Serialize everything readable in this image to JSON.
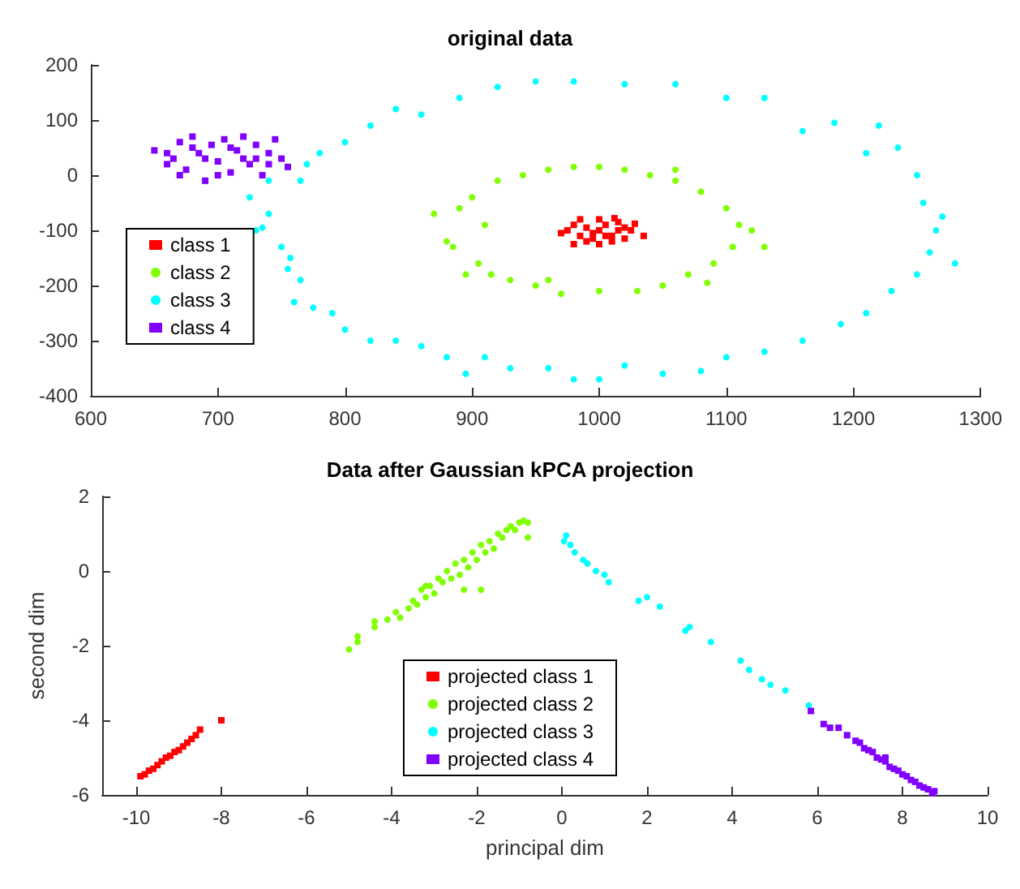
{
  "chart_data": [
    {
      "type": "scatter",
      "title": "original data",
      "xlim": [
        600,
        1300
      ],
      "xticks": [
        600,
        700,
        800,
        900,
        1000,
        1100,
        1200,
        1300
      ],
      "ylim": [
        -400,
        200
      ],
      "yticks": [
        -400,
        -300,
        -200,
        -100,
        0,
        100,
        200
      ],
      "grid": false,
      "legend": "bottom left",
      "series": [
        {
          "name": "class 1",
          "color": "#ff0000",
          "marker": "square",
          "x": [
            975,
            980,
            985,
            990,
            995,
            1000,
            1005,
            1010,
            1015,
            1020,
            990,
            1000,
            1010,
            985,
            1000,
            1015,
            1025,
            1035,
            970,
            995,
            1005,
            1020,
            1028,
            980,
            1012
          ],
          "values": [
            -100,
            -90,
            -110,
            -95,
            -105,
            -100,
            -90,
            -110,
            -100,
            -95,
            -120,
            -125,
            -120,
            -80,
            -80,
            -85,
            -100,
            -110,
            -105,
            -115,
            -110,
            -115,
            -88,
            -125,
            -78
          ]
        },
        {
          "name": "class 2",
          "color": "#80ff00",
          "marker": "circle",
          "x": [
            870,
            880,
            890,
            900,
            905,
            915,
            920,
            930,
            940,
            950,
            960,
            970,
            980,
            1000,
            1000,
            1020,
            1030,
            1040,
            1050,
            1060,
            1070,
            1080,
            1090,
            1100,
            1105,
            1110,
            1120,
            1130,
            885,
            895,
            910,
            1060,
            960,
            1085
          ],
          "values": [
            -70,
            -120,
            -60,
            -40,
            -160,
            -180,
            -10,
            -190,
            0,
            -200,
            10,
            -215,
            15,
            -210,
            15,
            10,
            -210,
            0,
            -200,
            -10,
            -180,
            -30,
            -160,
            -60,
            -130,
            -90,
            -100,
            -130,
            -130,
            -180,
            -90,
            10,
            -190,
            -195
          ]
        },
        {
          "name": "class 3",
          "color": "#00ffff",
          "marker": "circle",
          "x": [
            730,
            725,
            740,
            750,
            755,
            765,
            760,
            775,
            790,
            800,
            820,
            840,
            860,
            880,
            895,
            910,
            930,
            960,
            980,
            1000,
            1020,
            1050,
            1080,
            1100,
            1130,
            1160,
            1190,
            1210,
            1230,
            1250,
            1260,
            1265,
            1280,
            1270,
            1255,
            1250,
            1235,
            1220,
            1210,
            1185,
            1160,
            1130,
            1100,
            1060,
            1020,
            980,
            950,
            920,
            890,
            860,
            840,
            820,
            800,
            780,
            770,
            765,
            740,
            735,
            757
          ],
          "values": [
            -100,
            -40,
            -10,
            -130,
            -170,
            -190,
            -230,
            -240,
            -250,
            -280,
            -300,
            -300,
            -310,
            -330,
            -360,
            -330,
            -350,
            -350,
            -370,
            -370,
            -345,
            -360,
            -355,
            -330,
            -320,
            -300,
            -270,
            -250,
            -210,
            -180,
            -140,
            -100,
            -160,
            -75,
            -50,
            0,
            50,
            90,
            40,
            95,
            80,
            140,
            140,
            165,
            165,
            170,
            170,
            160,
            140,
            110,
            120,
            90,
            60,
            40,
            20,
            -10,
            -70,
            -95,
            -150
          ]
        },
        {
          "name": "class 4",
          "color": "#8000ff",
          "marker": "square",
          "x": [
            650,
            660,
            665,
            670,
            675,
            680,
            685,
            690,
            695,
            700,
            705,
            710,
            715,
            720,
            725,
            730,
            735,
            740,
            745,
            750,
            755,
            670,
            700,
            720,
            690,
            740,
            680,
            710,
            730,
            660
          ],
          "values": [
            45,
            20,
            30,
            60,
            10,
            70,
            40,
            -10,
            55,
            25,
            65,
            5,
            45,
            70,
            20,
            55,
            0,
            40,
            65,
            30,
            15,
            0,
            0,
            30,
            30,
            20,
            50,
            50,
            30,
            40
          ]
        }
      ]
    },
    {
      "type": "scatter",
      "title": "Data after Gaussian kPCA projection",
      "xlabel": "principal dim",
      "ylabel": "second dim",
      "xlim": [
        -10.8,
        10
      ],
      "xticks": [
        -10,
        -8,
        -6,
        -4,
        -2,
        0,
        2,
        4,
        6,
        8,
        10
      ],
      "ylim": [
        -6,
        2
      ],
      "yticks": [
        -6,
        -4,
        -2,
        0,
        2
      ],
      "grid": false,
      "legend": "bottom",
      "series": [
        {
          "name": "projected class 1",
          "color": "#ff0000",
          "marker": "square",
          "x": [
            -9.9,
            -9.8,
            -9.7,
            -9.6,
            -9.5,
            -9.4,
            -9.3,
            -9.2,
            -9.1,
            -9.0,
            -8.9,
            -8.8,
            -8.7,
            -8.6,
            -8.5,
            -8.0
          ],
          "values": [
            -5.5,
            -5.45,
            -5.35,
            -5.3,
            -5.2,
            -5.1,
            -5.0,
            -4.95,
            -4.85,
            -4.8,
            -4.7,
            -4.6,
            -4.5,
            -4.4,
            -4.25,
            -4.0
          ]
        },
        {
          "name": "projected class 2",
          "color": "#80ff00",
          "marker": "circle",
          "x": [
            -5,
            -4.8,
            -4.8,
            -4.4,
            -4.4,
            -4.1,
            -3.9,
            -3.8,
            -3.6,
            -3.5,
            -3.4,
            -3.3,
            -3.2,
            -3.1,
            -3.0,
            -2.9,
            -2.8,
            -2.7,
            -2.6,
            -2.5,
            -2.4,
            -2.3,
            -2.2,
            -2.1,
            -2.0,
            -1.9,
            -1.8,
            -1.7,
            -1.6,
            -1.5,
            -1.4,
            -1.3,
            -1.2,
            -1.1,
            -1.0,
            -0.9,
            -0.8,
            -0.8,
            -2.3,
            -1.9,
            -3.2
          ],
          "values": [
            -2.1,
            -1.9,
            -1.75,
            -1.5,
            -1.35,
            -1.3,
            -1.1,
            -1.25,
            -1.0,
            -0.8,
            -0.9,
            -0.5,
            -0.7,
            -0.4,
            -0.6,
            -0.2,
            -0.3,
            0.0,
            -0.2,
            0.2,
            -0.1,
            0.3,
            0.1,
            0.5,
            0.3,
            0.7,
            0.5,
            0.8,
            0.6,
            1.0,
            0.9,
            1.1,
            1.2,
            1.1,
            1.3,
            1.35,
            1.3,
            0.9,
            -0.5,
            -0.5,
            -0.4
          ]
        },
        {
          "name": "projected class 3",
          "color": "#00ffff",
          "marker": "circle",
          "x": [
            0.05,
            0.1,
            0.2,
            0.3,
            0.5,
            0.6,
            0.8,
            1.0,
            1.1,
            1.8,
            2.0,
            2.3,
            2.9,
            3.0,
            3.5,
            4.2,
            4.4,
            4.7,
            4.9,
            5.25,
            5.8
          ],
          "values": [
            0.8,
            0.95,
            0.7,
            0.5,
            0.3,
            0.2,
            0.0,
            -0.1,
            -0.3,
            -0.8,
            -0.7,
            -0.95,
            -1.6,
            -1.5,
            -1.9,
            -2.4,
            -2.65,
            -2.9,
            -3.05,
            -3.2,
            -3.6
          ]
        },
        {
          "name": "projected class 4",
          "color": "#8000ff",
          "marker": "square",
          "x": [
            5.85,
            6.15,
            6.3,
            6.5,
            6.7,
            6.9,
            7.0,
            7.1,
            7.3,
            7.4,
            7.5,
            7.6,
            7.7,
            7.8,
            7.9,
            8.0,
            8.1,
            8.2,
            8.3,
            8.4,
            8.5,
            8.6,
            8.7,
            8.75,
            7.2,
            7.6
          ],
          "values": [
            -3.75,
            -4.1,
            -4.2,
            -4.2,
            -4.4,
            -4.55,
            -4.6,
            -4.75,
            -4.85,
            -5.0,
            -5.05,
            -5.1,
            -5.25,
            -5.3,
            -5.35,
            -5.45,
            -5.5,
            -5.6,
            -5.65,
            -5.75,
            -5.8,
            -5.85,
            -5.95,
            -5.9,
            -4.8,
            -5.0
          ]
        }
      ]
    }
  ]
}
